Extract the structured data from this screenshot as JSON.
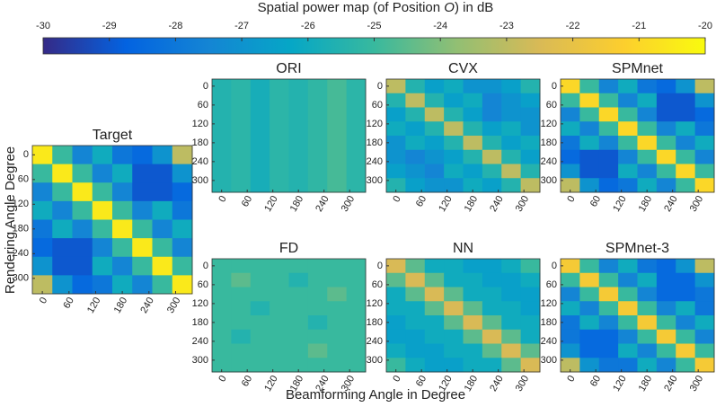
{
  "chart_data": {
    "type": "heatmap",
    "colorbar": {
      "label": [
        "Spatial power map (of Position ",
        "O",
        ") in dB"
      ],
      "clim": [
        -30,
        -20
      ],
      "ticks": [
        -30,
        -29,
        -28,
        -27,
        -26,
        -25,
        -24,
        -23,
        -22,
        -21,
        -20
      ]
    },
    "colormap": [
      "#352a87",
      "#0363e1",
      "#1485d4",
      "#06a7c6",
      "#38b99e",
      "#92bf73",
      "#d9ba56",
      "#fcce2e",
      "#f9fb0e"
    ],
    "xlabel": "Beamforming Angle in Degree",
    "ylabel": "Rendering Angle Degree",
    "xlim": [
      0,
      360
    ],
    "ylim": [
      0,
      360
    ],
    "xticks": [
      0,
      60,
      120,
      180,
      240,
      300
    ],
    "yticks": [
      0,
      60,
      120,
      180,
      240,
      300
    ],
    "panels": [
      {
        "title": "Target",
        "values": [
          [
            -20.5,
            -25,
            -27.5,
            -26,
            -28,
            -28.5,
            -27,
            -23
          ],
          [
            -25,
            -20.5,
            -25,
            -27.5,
            -26,
            -29,
            -29,
            -27
          ],
          [
            -27.5,
            -25,
            -20.5,
            -25,
            -27.5,
            -29,
            -29,
            -28.5
          ],
          [
            -26,
            -27.5,
            -25,
            -20.5,
            -25,
            -27.5,
            -26,
            -28
          ],
          [
            -28,
            -26,
            -27.5,
            -25,
            -20.5,
            -25,
            -27.5,
            -26
          ],
          [
            -28.5,
            -29,
            -29,
            -27.5,
            -25,
            -20.5,
            -25,
            -27.5
          ],
          [
            -27,
            -29,
            -29,
            -26,
            -27.5,
            -25,
            -20.5,
            -25
          ],
          [
            -23,
            -27,
            -28.5,
            -28,
            -26,
            -27.5,
            -25,
            -20.5
          ]
        ]
      },
      {
        "title": "ORI",
        "values": [
          [
            -25.5,
            -25.3,
            -25.8,
            -25.3,
            -25.5,
            -25.2,
            -24.8,
            -25.3
          ],
          [
            -25.5,
            -25.3,
            -25.8,
            -25.3,
            -25.5,
            -25.2,
            -24.8,
            -25.3
          ],
          [
            -25.5,
            -25.3,
            -25.8,
            -25.3,
            -25.5,
            -25.2,
            -24.8,
            -25.3
          ],
          [
            -25.5,
            -25.3,
            -25.8,
            -25.3,
            -25.5,
            -25.2,
            -24.8,
            -25.3
          ],
          [
            -25.5,
            -25.3,
            -25.8,
            -25.3,
            -25.5,
            -25.2,
            -24.8,
            -25.3
          ],
          [
            -25.5,
            -25.3,
            -25.8,
            -25.3,
            -25.5,
            -25.2,
            -24.8,
            -25.3
          ],
          [
            -25.5,
            -25.3,
            -25.8,
            -25.3,
            -25.5,
            -25.2,
            -24.8,
            -25.3
          ],
          [
            -25.5,
            -25.3,
            -25.8,
            -25.3,
            -25.5,
            -25.2,
            -24.8,
            -25.3
          ]
        ]
      },
      {
        "title": "CVX",
        "values": [
          [
            -23,
            -25.5,
            -26.5,
            -26,
            -27,
            -27,
            -26.5,
            -25.5
          ],
          [
            -25.5,
            -23,
            -25.5,
            -26.5,
            -26,
            -27.5,
            -27,
            -26.5
          ],
          [
            -26.5,
            -25.5,
            -23,
            -25.5,
            -26.5,
            -27.5,
            -27,
            -27
          ],
          [
            -26,
            -26.5,
            -25.5,
            -23,
            -25.5,
            -26.5,
            -26,
            -27
          ],
          [
            -27,
            -26,
            -26.5,
            -25.5,
            -23,
            -25.5,
            -26.5,
            -26
          ],
          [
            -27,
            -27.5,
            -27,
            -26.5,
            -25.5,
            -23,
            -25.5,
            -26.5
          ],
          [
            -26.5,
            -27,
            -27.5,
            -26,
            -26.5,
            -25.5,
            -23,
            -25.5
          ],
          [
            -25.5,
            -26.5,
            -27,
            -27,
            -26,
            -26.5,
            -25.5,
            -23
          ]
        ]
      },
      {
        "title": "SPMnet",
        "values": [
          [
            -21,
            -25,
            -27.5,
            -26,
            -28,
            -28.5,
            -27,
            -23
          ],
          [
            -25,
            -21,
            -25,
            -27.5,
            -26,
            -29,
            -29,
            -27
          ],
          [
            -27.5,
            -25,
            -21,
            -25,
            -27.5,
            -29,
            -29,
            -28.5
          ],
          [
            -26,
            -27.5,
            -25,
            -21,
            -25,
            -27.5,
            -26,
            -28
          ],
          [
            -28,
            -26,
            -27.5,
            -25,
            -21,
            -25,
            -27.5,
            -26
          ],
          [
            -28.5,
            -29,
            -29,
            -27.5,
            -25,
            -21,
            -25,
            -27.5
          ],
          [
            -27,
            -29,
            -29,
            -26,
            -27.5,
            -25,
            -21,
            -25
          ],
          [
            -23,
            -27,
            -28.5,
            -28,
            -26,
            -27.5,
            -25,
            -21
          ]
        ]
      },
      {
        "title": "FD",
        "values": [
          [
            -25,
            -25,
            -25,
            -25,
            -25,
            -25,
            -25,
            -25
          ],
          [
            -25,
            -24.5,
            -25,
            -25,
            -25.5,
            -25,
            -25,
            -25
          ],
          [
            -25,
            -25,
            -25,
            -25,
            -25,
            -25,
            -24.5,
            -25
          ],
          [
            -25,
            -25,
            -25.5,
            -25,
            -25,
            -25,
            -25,
            -25
          ],
          [
            -25,
            -25,
            -25,
            -25,
            -25,
            -25.5,
            -25,
            -25
          ],
          [
            -25,
            -25.5,
            -25,
            -25,
            -25,
            -25,
            -25,
            -25
          ],
          [
            -25,
            -25,
            -25,
            -25,
            -25,
            -24.5,
            -25,
            -25
          ],
          [
            -25,
            -25,
            -25,
            -25,
            -25,
            -25,
            -25,
            -25
          ]
        ]
      },
      {
        "title": "NN",
        "values": [
          [
            -22.5,
            -24.5,
            -26,
            -26,
            -26.5,
            -26.5,
            -26,
            -25
          ],
          [
            -24.5,
            -22.5,
            -24.5,
            -26,
            -26,
            -26.5,
            -26.5,
            -26
          ],
          [
            -26,
            -24.5,
            -22.5,
            -24.5,
            -26,
            -26,
            -26.5,
            -26.5
          ],
          [
            -26,
            -26,
            -24.5,
            -22.5,
            -24.5,
            -26,
            -26,
            -26.5
          ],
          [
            -26.5,
            -26,
            -26,
            -24.5,
            -22.5,
            -24.5,
            -26,
            -26
          ],
          [
            -26.5,
            -26.5,
            -26,
            -26,
            -24.5,
            -22.5,
            -24.5,
            -26
          ],
          [
            -26,
            -26.5,
            -26.5,
            -26,
            -26,
            -24.5,
            -22.5,
            -24.5
          ],
          [
            -25,
            -26,
            -26.5,
            -26.5,
            -26,
            -26,
            -24.5,
            -22.5
          ]
        ]
      },
      {
        "title": "SPMnet-3",
        "values": [
          [
            -21.5,
            -25,
            -27.5,
            -26,
            -28,
            -28.5,
            -27,
            -23
          ],
          [
            -25,
            -21.5,
            -25,
            -27.5,
            -26,
            -28.5,
            -28.5,
            -27
          ],
          [
            -27.5,
            -25,
            -21.5,
            -25,
            -27.5,
            -28.5,
            -28.5,
            -28
          ],
          [
            -26,
            -27.5,
            -25,
            -21.5,
            -25,
            -27.5,
            -26,
            -28
          ],
          [
            -28,
            -26,
            -27.5,
            -25,
            -21.5,
            -25,
            -27.5,
            -26
          ],
          [
            -28,
            -28.5,
            -28.5,
            -27.5,
            -25,
            -21.5,
            -25,
            -27.5
          ],
          [
            -27,
            -28.5,
            -28.5,
            -26,
            -27.5,
            -25,
            -21.5,
            -25
          ],
          [
            -23,
            -27,
            -28,
            -28,
            -26,
            -27.5,
            -25,
            -21.5
          ]
        ]
      }
    ]
  }
}
